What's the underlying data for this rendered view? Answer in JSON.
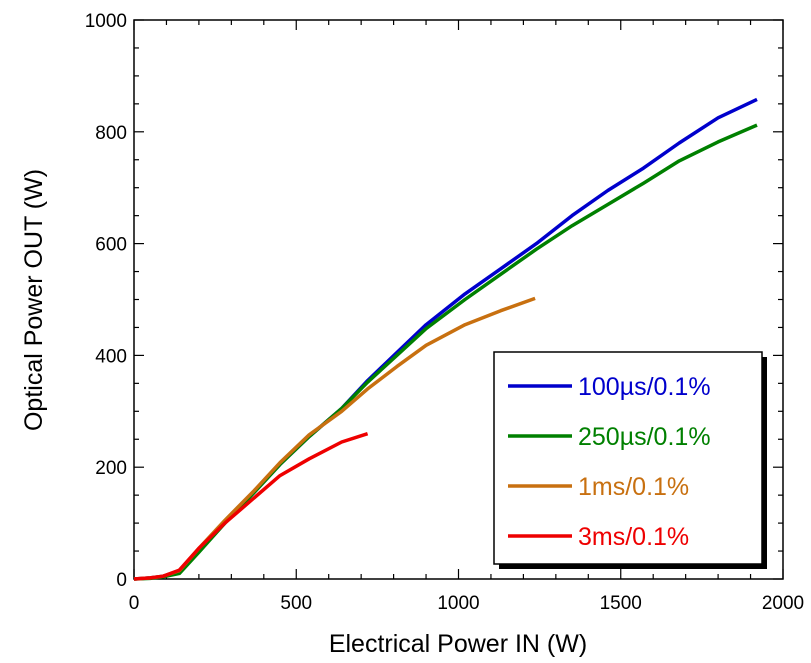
{
  "chart_data": {
    "type": "line",
    "title": "",
    "xlabel": "Electrical Power IN (W)",
    "ylabel": "Optical Power OUT (W)",
    "xlim": [
      0,
      2000
    ],
    "ylim": [
      0,
      1000
    ],
    "xticks": [
      0,
      500,
      1000,
      1500,
      2000
    ],
    "yticks": [
      0,
      200,
      400,
      600,
      800,
      1000
    ],
    "xtick_labels": [
      "0",
      "500",
      "1000",
      "1500",
      "2000"
    ],
    "ytick_labels": [
      "0",
      "200",
      "400",
      "600",
      "800",
      "1000"
    ],
    "grid": false,
    "legend_position": "bottom-right",
    "series": [
      {
        "name": "100µs/0.1%",
        "color": "#0000cc",
        "points": [
          [
            0,
            0
          ],
          [
            50,
            2
          ],
          [
            90,
            5
          ],
          [
            140,
            12
          ],
          [
            200,
            50
          ],
          [
            280,
            100
          ],
          [
            370,
            155
          ],
          [
            450,
            205
          ],
          [
            540,
            255
          ],
          [
            640,
            305
          ],
          [
            720,
            355
          ],
          [
            810,
            405
          ],
          [
            900,
            455
          ],
          [
            1020,
            510
          ],
          [
            1130,
            555
          ],
          [
            1240,
            600
          ],
          [
            1350,
            650
          ],
          [
            1460,
            695
          ],
          [
            1570,
            735
          ],
          [
            1680,
            780
          ],
          [
            1800,
            825
          ],
          [
            1920,
            858
          ]
        ]
      },
      {
        "name": "250µs/0.1%",
        "color": "#008000",
        "points": [
          [
            0,
            0
          ],
          [
            50,
            1
          ],
          [
            90,
            4
          ],
          [
            140,
            10
          ],
          [
            200,
            48
          ],
          [
            280,
            100
          ],
          [
            370,
            155
          ],
          [
            450,
            205
          ],
          [
            540,
            255
          ],
          [
            640,
            305
          ],
          [
            720,
            352
          ],
          [
            810,
            400
          ],
          [
            900,
            448
          ],
          [
            1020,
            500
          ],
          [
            1130,
            545
          ],
          [
            1240,
            590
          ],
          [
            1350,
            632
          ],
          [
            1460,
            670
          ],
          [
            1570,
            708
          ],
          [
            1680,
            748
          ],
          [
            1800,
            782
          ],
          [
            1920,
            812
          ]
        ]
      },
      {
        "name": "1ms/0.1%",
        "color": "#c87010",
        "points": [
          [
            0,
            0
          ],
          [
            50,
            2
          ],
          [
            90,
            5
          ],
          [
            140,
            15
          ],
          [
            200,
            55
          ],
          [
            280,
            105
          ],
          [
            370,
            158
          ],
          [
            450,
            208
          ],
          [
            540,
            258
          ],
          [
            640,
            300
          ],
          [
            720,
            340
          ],
          [
            810,
            380
          ],
          [
            900,
            418
          ],
          [
            1020,
            455
          ],
          [
            1130,
            480
          ],
          [
            1236,
            502
          ]
        ]
      },
      {
        "name": "3ms/0.1%",
        "color": "#ee0000",
        "points": [
          [
            0,
            0
          ],
          [
            50,
            2
          ],
          [
            90,
            5
          ],
          [
            140,
            16
          ],
          [
            200,
            55
          ],
          [
            280,
            100
          ],
          [
            370,
            145
          ],
          [
            450,
            185
          ],
          [
            540,
            215
          ],
          [
            640,
            245
          ],
          [
            720,
            260
          ]
        ]
      }
    ]
  }
}
